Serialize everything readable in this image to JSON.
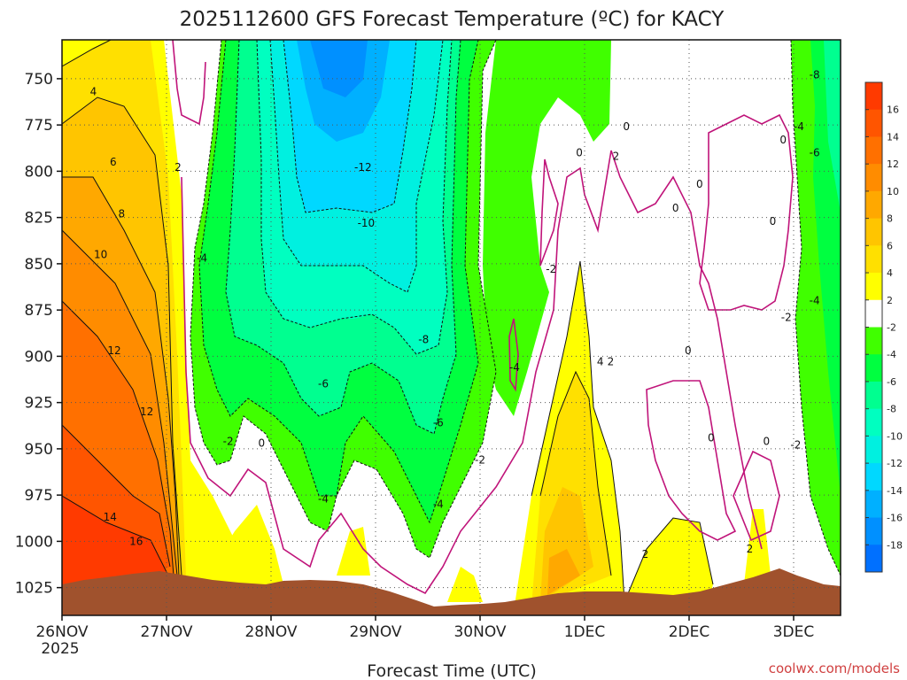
{
  "chart_data": {
    "type": "heatmap",
    "title": "2025112600 GFS Forecast Temperature (ºC) for KACY",
    "xlabel": "Forecast Time (UTC)",
    "ylabel": "",
    "x_ticks": [
      "26NOV",
      "27NOV",
      "28NOV",
      "29NOV",
      "30NOV",
      "1DEC",
      "2DEC",
      "3DEC"
    ],
    "x_tick_year": "2025",
    "y_ticks": [
      750,
      775,
      800,
      825,
      850,
      875,
      900,
      925,
      950,
      975,
      1000,
      1025
    ],
    "y_axis": "pressure",
    "y_reversed": true,
    "grid": "dotted",
    "colorbar": {
      "ticks": [
        16,
        14,
        12,
        10,
        8,
        6,
        4,
        2,
        -2,
        -4,
        -6,
        -8,
        -10,
        -12,
        -14,
        -16,
        -18
      ],
      "colors": [
        "#ff3a00",
        "#ff5500",
        "#ff7000",
        "#ff8c00",
        "#ffa800",
        "#ffc500",
        "#ffe000",
        "#ffff00",
        "#ffffff",
        "#40ff00",
        "#00ff40",
        "#00ff90",
        "#00ffc0",
        "#00f0e0",
        "#00d8ff",
        "#00b0ff",
        "#0090ff",
        "#0070ff"
      ]
    },
    "contour_labels": [
      {
        "text": "4",
        "t": 0.3,
        "p": 757
      },
      {
        "text": "6",
        "t": 0.49,
        "p": 795
      },
      {
        "text": "8",
        "t": 0.57,
        "p": 823
      },
      {
        "text": "10",
        "t": 0.37,
        "p": 845
      },
      {
        "text": "12",
        "t": 0.5,
        "p": 897
      },
      {
        "text": "12",
        "t": 0.81,
        "p": 930
      },
      {
        "text": "14",
        "t": 0.46,
        "p": 987
      },
      {
        "text": "16",
        "t": 0.71,
        "p": 1000
      },
      {
        "text": "2",
        "t": 1.11,
        "p": 798
      },
      {
        "text": "-4",
        "t": 1.34,
        "p": 847
      },
      {
        "text": "-2",
        "t": 1.59,
        "p": 946
      },
      {
        "text": "0",
        "t": 1.91,
        "p": 947
      },
      {
        "text": "-12",
        "t": 2.88,
        "p": 798
      },
      {
        "text": "-10",
        "t": 2.91,
        "p": 828
      },
      {
        "text": "-8",
        "t": 3.46,
        "p": 891
      },
      {
        "text": "-6",
        "t": 2.5,
        "p": 915
      },
      {
        "text": "-6",
        "t": 3.6,
        "p": 936
      },
      {
        "text": "-4",
        "t": 2.5,
        "p": 977
      },
      {
        "text": "-4",
        "t": 3.6,
        "p": 980
      },
      {
        "text": "-2",
        "t": 4.0,
        "p": 956
      },
      {
        "text": "-4",
        "t": 4.33,
        "p": 906
      },
      {
        "text": "-2",
        "t": 4.68,
        "p": 853
      },
      {
        "text": "0",
        "t": 4.95,
        "p": 790
      },
      {
        "text": "0",
        "t": 5.4,
        "p": 776
      },
      {
        "text": "2",
        "t": 5.3,
        "p": 792
      },
      {
        "text": "4",
        "t": 5.15,
        "p": 903
      },
      {
        "text": "2",
        "t": 5.25,
        "p": 903
      },
      {
        "text": "2",
        "t": 5.58,
        "p": 1007
      },
      {
        "text": "0",
        "t": 5.99,
        "p": 897
      },
      {
        "text": "0",
        "t": 6.1,
        "p": 807
      },
      {
        "text": "0",
        "t": 5.87,
        "p": 820
      },
      {
        "text": "0",
        "t": 6.21,
        "p": 944
      },
      {
        "text": "0",
        "t": 6.74,
        "p": 946
      },
      {
        "text": "0",
        "t": 6.8,
        "p": 827
      },
      {
        "text": "-2",
        "t": 6.93,
        "p": 879
      },
      {
        "text": "-2",
        "t": 7.02,
        "p": 948
      },
      {
        "text": "2",
        "t": 6.58,
        "p": 1004
      },
      {
        "text": "0",
        "t": 6.9,
        "p": 783
      },
      {
        "text": "-4",
        "t": 7.05,
        "p": 776
      },
      {
        "text": "-6",
        "t": 7.2,
        "p": 790
      },
      {
        "text": "-8",
        "t": 7.2,
        "p": 748
      },
      {
        "text": "-4",
        "t": 7.2,
        "p": 870
      }
    ]
  },
  "credit": "coolwx.com/models"
}
